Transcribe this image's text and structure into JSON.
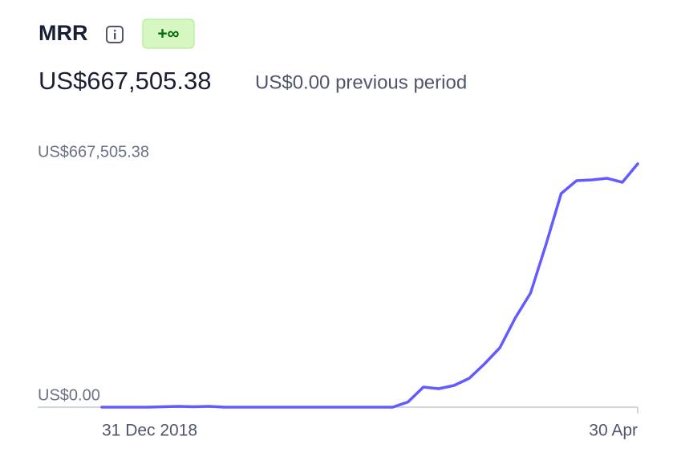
{
  "chart_data": {
    "type": "line",
    "title": "MRR",
    "badge": "+∞",
    "value": "US$667,505.38",
    "subtitle": "US$0.00 previous period",
    "categories": [
      "31 Dec 2018",
      null,
      null,
      null,
      null,
      null,
      null,
      null,
      null,
      null,
      null,
      null,
      null,
      null,
      null,
      null,
      null,
      null,
      null,
      null,
      null,
      null,
      null,
      null,
      null,
      null,
      null,
      null,
      null,
      null,
      null,
      null,
      null,
      null,
      null,
      "30 Apr"
    ],
    "series": [
      {
        "color": "#635bff",
        "values": [
          0,
          0,
          0,
          0,
          1100,
          2200,
          1100,
          2200,
          0,
          0,
          0,
          0,
          0,
          0,
          0,
          0,
          0,
          0,
          0,
          0,
          14300,
          55000,
          50700,
          59500,
          79300,
          119000,
          163000,
          244500,
          312800,
          445000,
          586000,
          621200,
          623500,
          627900,
          616800,
          667505.38
        ]
      }
    ],
    "ylim": [
      0,
      667505.38
    ],
    "yticks": [
      {
        "value": 0,
        "label": "US$0.00"
      },
      {
        "value": 667505.38,
        "label": "US$667,505.38"
      }
    ]
  }
}
